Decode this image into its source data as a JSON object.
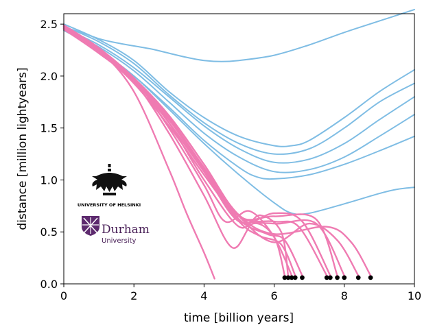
{
  "chart_data": {
    "type": "line",
    "xlabel": "time [billion years]",
    "ylabel": "distance [million lightyears]",
    "xlim": [
      0,
      10
    ],
    "ylim": [
      0,
      2.6
    ],
    "xticks": [
      0,
      2,
      4,
      6,
      8,
      10
    ],
    "yticks": [
      0.0,
      0.5,
      1.0,
      1.5,
      2.0,
      2.5
    ],
    "xtick_labels": [
      "0",
      "2",
      "4",
      "6",
      "8",
      "10"
    ],
    "ytick_labels": [
      "0.0",
      "0.5",
      "1.0",
      "1.5",
      "2.0",
      "2.5"
    ],
    "grid": false,
    "legend": "none",
    "colors": {
      "receding": "#7fbde4",
      "merging": "#ef7bb2",
      "merger_point": "#000000"
    },
    "series": [
      {
        "group": "receding",
        "x": [
          0,
          0.5,
          1.0,
          1.5,
          2.0,
          2.5,
          3.0,
          3.5,
          4.0,
          4.5,
          5.0,
          6.0,
          7.0,
          8.0,
          9.0,
          10.0
        ],
        "y": [
          2.47,
          2.42,
          2.36,
          2.32,
          2.29,
          2.26,
          2.22,
          2.18,
          2.15,
          2.14,
          2.15,
          2.2,
          2.3,
          2.42,
          2.53,
          2.64
        ]
      },
      {
        "group": "receding",
        "x": [
          0,
          1.0,
          2.0,
          3.0,
          4.0,
          5.0,
          6.0,
          6.5,
          7.0,
          8.0,
          9.0,
          10.0
        ],
        "y": [
          2.5,
          2.35,
          2.15,
          1.85,
          1.6,
          1.42,
          1.33,
          1.33,
          1.38,
          1.6,
          1.85,
          2.06
        ]
      },
      {
        "group": "receding",
        "x": [
          0,
          1.0,
          2.0,
          3.0,
          4.0,
          5.0,
          6.0,
          7.0,
          8.0,
          9.0,
          10.0
        ],
        "y": [
          2.48,
          2.33,
          2.12,
          1.82,
          1.55,
          1.35,
          1.25,
          1.3,
          1.5,
          1.75,
          1.93
        ]
      },
      {
        "group": "receding",
        "x": [
          0,
          1.0,
          2.0,
          3.0,
          4.0,
          5.0,
          6.0,
          7.0,
          8.0,
          9.0,
          10.0
        ],
        "y": [
          2.46,
          2.3,
          2.08,
          1.8,
          1.52,
          1.3,
          1.17,
          1.2,
          1.35,
          1.58,
          1.8
        ]
      },
      {
        "group": "receding",
        "x": [
          0,
          1.0,
          2.0,
          3.0,
          4.0,
          5.0,
          6.0,
          7.0,
          8.0,
          9.0,
          10.0
        ],
        "y": [
          2.45,
          2.28,
          2.05,
          1.75,
          1.45,
          1.22,
          1.08,
          1.1,
          1.22,
          1.42,
          1.63
        ]
      },
      {
        "group": "receding",
        "x": [
          0,
          1.0,
          2.0,
          3.0,
          4.0,
          5.0,
          5.5,
          6.0,
          7.0,
          8.0,
          9.0,
          10.0
        ],
        "y": [
          2.44,
          2.25,
          2.0,
          1.7,
          1.38,
          1.12,
          1.03,
          1.01,
          1.05,
          1.15,
          1.28,
          1.42
        ]
      },
      {
        "group": "receding",
        "x": [
          0,
          1.0,
          2.0,
          3.0,
          4.0,
          5.0,
          6.0,
          6.5,
          7.0,
          8.0,
          9.0,
          9.5,
          10.0
        ],
        "y": [
          2.45,
          2.25,
          2.0,
          1.68,
          1.35,
          1.05,
          0.78,
          0.68,
          0.68,
          0.77,
          0.87,
          0.91,
          0.93
        ]
      },
      {
        "group": "merging",
        "x": [
          0,
          1.0,
          2.0,
          3.0,
          3.5,
          4.0,
          4.3
        ],
        "y": [
          2.47,
          2.25,
          1.85,
          1.1,
          0.68,
          0.3,
          0.05
        ]
      },
      {
        "group": "merging",
        "x": [
          0,
          1.0,
          2.0,
          3.0,
          4.0,
          4.8,
          5.4,
          6.0,
          6.3
        ],
        "y": [
          2.48,
          2.26,
          1.95,
          1.45,
          0.85,
          0.35,
          0.58,
          0.45,
          0.08
        ]
      },
      {
        "group": "merging",
        "x": [
          0,
          1.0,
          2.0,
          3.0,
          4.0,
          5.0,
          5.6,
          6.2,
          6.4
        ],
        "y": [
          2.46,
          2.25,
          1.98,
          1.55,
          1.0,
          0.55,
          0.66,
          0.5,
          0.08
        ]
      },
      {
        "group": "merging",
        "x": [
          0,
          1.0,
          2.0,
          3.0,
          4.0,
          4.6,
          5.3,
          6.0,
          6.5
        ],
        "y": [
          2.46,
          2.24,
          1.97,
          1.5,
          0.95,
          0.6,
          0.7,
          0.45,
          0.08
        ]
      },
      {
        "group": "merging",
        "x": [
          0,
          1.0,
          2.0,
          3.0,
          4.0,
          5.0,
          5.6,
          6.2,
          6.6
        ],
        "y": [
          2.49,
          2.24,
          1.93,
          1.52,
          1.05,
          0.6,
          0.46,
          0.38,
          0.08
        ]
      },
      {
        "group": "merging",
        "x": [
          0,
          1.0,
          2.0,
          3.0,
          4.0,
          5.0,
          5.8,
          6.3,
          6.8
        ],
        "y": [
          2.48,
          2.25,
          1.98,
          1.55,
          1.08,
          0.62,
          0.48,
          0.42,
          0.08
        ]
      },
      {
        "group": "merging",
        "x": [
          0,
          1.0,
          2.0,
          3.0,
          4.0,
          5.0,
          6.0,
          6.7,
          7.5
        ],
        "y": [
          2.47,
          2.26,
          1.98,
          1.6,
          1.1,
          0.65,
          0.6,
          0.55,
          0.08
        ]
      },
      {
        "group": "merging",
        "x": [
          0,
          1.0,
          2.0,
          3.0,
          4.0,
          5.0,
          6.0,
          6.8,
          7.6
        ],
        "y": [
          2.45,
          2.22,
          1.95,
          1.55,
          1.08,
          0.6,
          0.68,
          0.6,
          0.08
        ]
      },
      {
        "group": "merging",
        "x": [
          0,
          1.0,
          2.0,
          3.0,
          4.0,
          5.0,
          6.0,
          7.2,
          7.8
        ],
        "y": [
          2.46,
          2.23,
          1.96,
          1.58,
          1.12,
          0.65,
          0.65,
          0.62,
          0.08
        ]
      },
      {
        "group": "merging",
        "x": [
          0,
          1.0,
          2.0,
          3.0,
          4.0,
          5.0,
          6.0,
          7.2,
          8.0
        ],
        "y": [
          2.48,
          2.25,
          1.98,
          1.62,
          1.15,
          0.66,
          0.58,
          0.58,
          0.08
        ]
      },
      {
        "group": "merging",
        "x": [
          0,
          1.0,
          2.0,
          3.0,
          4.0,
          5.0,
          6.0,
          7.0,
          7.8,
          8.4
        ],
        "y": [
          2.48,
          2.26,
          1.96,
          1.58,
          1.1,
          0.65,
          0.4,
          0.58,
          0.42,
          0.08
        ]
      },
      {
        "group": "merging",
        "x": [
          0,
          1.0,
          2.0,
          3.0,
          4.0,
          5.0,
          6.0,
          7.5,
          8.2,
          8.75
        ],
        "y": [
          2.49,
          2.27,
          1.98,
          1.6,
          1.12,
          0.66,
          0.48,
          0.55,
          0.4,
          0.08
        ]
      }
    ],
    "merger_points": {
      "x": [
        6.3,
        6.4,
        6.5,
        6.6,
        6.8,
        7.5,
        7.6,
        7.8,
        8.0,
        8.4,
        8.75
      ],
      "y": [
        0.06,
        0.06,
        0.06,
        0.06,
        0.06,
        0.06,
        0.06,
        0.06,
        0.06,
        0.06,
        0.06
      ]
    }
  },
  "logos": {
    "helsinki": {
      "text": "UNIVERSITY OF HELSINKI"
    },
    "durham": {
      "name": "Durham",
      "subtitle": "University"
    }
  }
}
